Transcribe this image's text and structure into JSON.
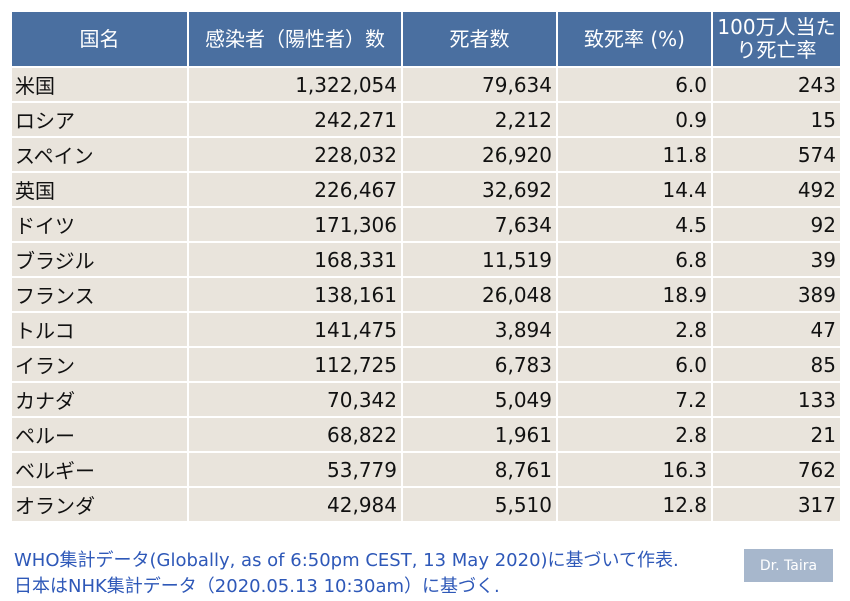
{
  "table": {
    "headers": [
      "国名",
      "感染者（陽性者）数",
      "死者数",
      "致死率 (%)",
      "100万人当たり死亡率"
    ],
    "rows": [
      [
        "米国",
        "1,322,054",
        "79,634",
        "6.0",
        "243"
      ],
      [
        "ロシア",
        "242,271",
        "2,212",
        "0.9",
        "15"
      ],
      [
        "スペイン",
        "228,032",
        "26,920",
        "11.8",
        "574"
      ],
      [
        "英国",
        "226,467",
        "32,692",
        "14.4",
        "492"
      ],
      [
        "ドイツ",
        "171,306",
        "7,634",
        "4.5",
        "92"
      ],
      [
        "ブラジル",
        "168,331",
        "11,519",
        "6.8",
        "39"
      ],
      [
        "フランス",
        "138,161",
        "26,048",
        "18.9",
        "389"
      ],
      [
        "トルコ",
        "141,475",
        "3,894",
        "2.8",
        "47"
      ],
      [
        "イラン",
        "112,725",
        "6,783",
        "6.0",
        "85"
      ],
      [
        "カナダ",
        "70,342",
        "5,049",
        "7.2",
        "133"
      ],
      [
        "ペルー",
        "68,822",
        "1,961",
        "2.8",
        "21"
      ],
      [
        "ベルギー",
        "53,779",
        "8,761",
        "16.3",
        "762"
      ],
      [
        "オランダ",
        "42,984",
        "5,510",
        "12.8",
        "317"
      ]
    ]
  },
  "footnote": {
    "line1": "WHO集計データ(Globally, as of 6:50pm CEST, 13 May 2020)に基づいて作表.",
    "line2": "日本はNHK集計データ（2020.05.13 10:30am）に基づく."
  },
  "badge": "Dr. Taira",
  "colors": {
    "header_bg": "#4a6fa0",
    "row_bg": "#e9e4dc",
    "footnote": "#2e58b8",
    "badge_bg": "#a7b7cc"
  }
}
